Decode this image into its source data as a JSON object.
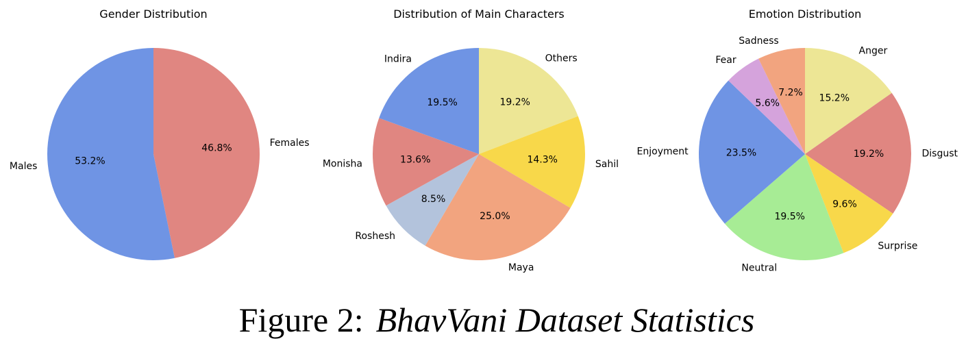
{
  "chart_data": [
    {
      "type": "pie",
      "title": "Gender Distribution",
      "labels": [
        "Females",
        "Males"
      ],
      "values": [
        46.8,
        53.2
      ],
      "percent_labels": [
        "46.8%",
        "53.2%"
      ],
      "colors": [
        "#e08681",
        "#6f94e4"
      ],
      "start_angle_deg": 90,
      "direction": "clockwise"
    },
    {
      "type": "pie",
      "title": "Distribution of Main Characters",
      "labels": [
        "Others",
        "Sahil",
        "Maya",
        "Roshesh",
        "Monisha",
        "Indira"
      ],
      "values": [
        19.2,
        14.3,
        25.0,
        8.5,
        13.6,
        19.5
      ],
      "percent_labels": [
        "19.2%",
        "14.3%",
        "25.0%",
        "8.5%",
        "13.6%",
        "19.5%"
      ],
      "colors": [
        "#ede695",
        "#f8d84a",
        "#f2a47f",
        "#b3c3dc",
        "#e08681",
        "#6f94e4"
      ],
      "start_angle_deg": 90,
      "direction": "clockwise"
    },
    {
      "type": "pie",
      "title": "Emotion Distribution",
      "labels": [
        "Anger",
        "Disgust",
        "Surprise",
        "Neutral",
        "Enjoyment",
        "Fear",
        "Sadness"
      ],
      "values": [
        15.2,
        19.2,
        9.6,
        19.5,
        23.5,
        5.6,
        7.2
      ],
      "percent_labels": [
        "15.2%",
        "19.2%",
        "9.6%",
        "19.5%",
        "23.5%",
        "5.6%",
        "7.2%"
      ],
      "colors": [
        "#ede695",
        "#e08681",
        "#f8d84a",
        "#a7ec95",
        "#6f94e4",
        "#d5a3dc",
        "#f2a47f"
      ],
      "start_angle_deg": 90,
      "direction": "clockwise"
    }
  ],
  "caption": {
    "prefix": "Figure 2:",
    "text": "BhavVani Dataset Statistics"
  }
}
